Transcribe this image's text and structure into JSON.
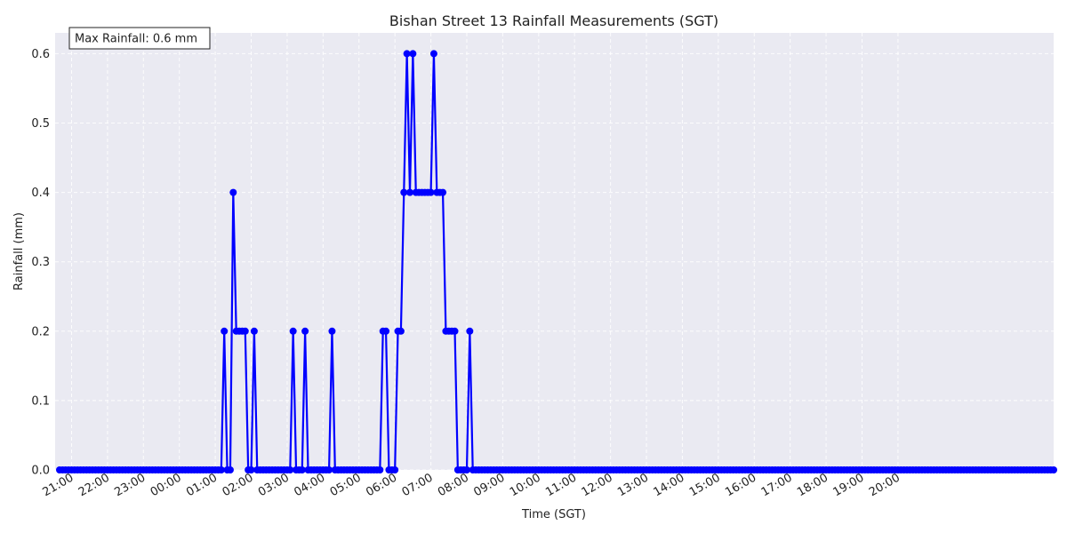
{
  "chart_data": {
    "type": "line",
    "title": "Bishan Street 13 Rainfall Measurements (SGT)",
    "xlabel": "Time (SGT)",
    "ylabel": "Rainfall (mm)",
    "ylim": [
      0,
      0.63
    ],
    "yticks": [
      "0.0",
      "0.1",
      "0.2",
      "0.3",
      "0.4",
      "0.5",
      "0.6"
    ],
    "xtick_labels": [
      "21:00",
      "22:00",
      "23:00",
      "00:00",
      "01:00",
      "02:00",
      "03:00",
      "04:00",
      "05:00",
      "06:00",
      "07:00",
      "08:00",
      "09:00",
      "10:00",
      "11:00",
      "12:00",
      "13:00",
      "14:00",
      "15:00",
      "16:00",
      "17:00",
      "18:00",
      "19:00",
      "20:00"
    ],
    "x_start": "20:40",
    "x_end": "20:30",
    "interval_minutes": 5,
    "annotation": "Max Rainfall: 0.6 mm",
    "grid": true,
    "background": "#eaeaf2",
    "line_color": "#0000ff",
    "series": [
      {
        "values": [
          0,
          0,
          0,
          0,
          0,
          0,
          0,
          0,
          0,
          0,
          0,
          0,
          0,
          0,
          0,
          0,
          0,
          0,
          0,
          0,
          0,
          0,
          0,
          0,
          0,
          0,
          0,
          0,
          0,
          0,
          0,
          0,
          0,
          0,
          0,
          0,
          0,
          0,
          0,
          0,
          0,
          0,
          0,
          0,
          0,
          0,
          0,
          0,
          0,
          0,
          0,
          0,
          0,
          0,
          0,
          0.2,
          0,
          0,
          0.4,
          0.2,
          0.2,
          0.2,
          0.2,
          0,
          0,
          0.2,
          0,
          0,
          0,
          0,
          0,
          0,
          0,
          0,
          0,
          0,
          0,
          0,
          0.2,
          0,
          0,
          0,
          0.2,
          0,
          0,
          0,
          0,
          0,
          0,
          0,
          0,
          0.2,
          0,
          0,
          0,
          0,
          0,
          0,
          0,
          0,
          0,
          0,
          0,
          0,
          0,
          0,
          0,
          0,
          0.2,
          0.2,
          0,
          0,
          0,
          0.2,
          0.2,
          0.4,
          0.6,
          0.4,
          0.6,
          0.4,
          0.4,
          0.4,
          0.4,
          0.4,
          0.4,
          0.6,
          0.4,
          0.4,
          0.4,
          0.2,
          0.2,
          0.2,
          0.2,
          0,
          0,
          0,
          0,
          0.2,
          0,
          0,
          0,
          0,
          0,
          0,
          0,
          0,
          0,
          0,
          0,
          0,
          0,
          0,
          0,
          0,
          0,
          0,
          0,
          0,
          0,
          0,
          0,
          0,
          0,
          0,
          0,
          0,
          0,
          0,
          0,
          0,
          0,
          0,
          0,
          0,
          0,
          0,
          0,
          0,
          0,
          0,
          0,
          0,
          0,
          0,
          0,
          0,
          0,
          0,
          0,
          0,
          0,
          0,
          0,
          0,
          0,
          0,
          0,
          0,
          0,
          0,
          0,
          0,
          0,
          0,
          0,
          0,
          0,
          0,
          0,
          0,
          0,
          0,
          0,
          0,
          0,
          0,
          0,
          0,
          0,
          0,
          0,
          0,
          0,
          0,
          0,
          0,
          0,
          0,
          0,
          0,
          0,
          0,
          0,
          0,
          0,
          0,
          0,
          0,
          0,
          0,
          0,
          0,
          0,
          0,
          0,
          0,
          0,
          0,
          0,
          0,
          0,
          0,
          0,
          0,
          0,
          0,
          0,
          0,
          0,
          0,
          0,
          0,
          0,
          0,
          0,
          0,
          0,
          0,
          0,
          0,
          0,
          0,
          0,
          0,
          0,
          0,
          0,
          0,
          0,
          0,
          0,
          0,
          0,
          0,
          0,
          0,
          0,
          0,
          0,
          0,
          0,
          0,
          0,
          0,
          0,
          0,
          0,
          0,
          0,
          0,
          0,
          0,
          0,
          0,
          0,
          0,
          0,
          0,
          0,
          0,
          0,
          0,
          0,
          0,
          0,
          0,
          0,
          0,
          0,
          0,
          0,
          0,
          0,
          0,
          0,
          0,
          0,
          0,
          0,
          0,
          0,
          0,
          0
        ]
      }
    ]
  }
}
